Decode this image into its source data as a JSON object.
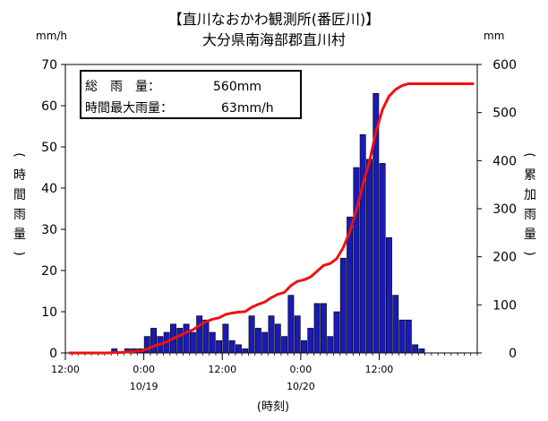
{
  "chart_data": {
    "type": "bar",
    "title": "【直川なおかわ観測所(番匠川)】",
    "subtitle": "大分県南海部郡直川村",
    "left_unit": "mm/h",
    "right_unit": "mm",
    "ylabel_left": "(時間雨量)",
    "ylabel_right": "(累加雨量)",
    "xlabel": "(時刻)",
    "ylim_left": [
      0,
      70
    ],
    "ylim_right": [
      0,
      600
    ],
    "yticks_left": [
      "0",
      "10",
      "20",
      "30",
      "40",
      "50",
      "60",
      "70"
    ],
    "yticks_right": [
      "0",
      "100",
      "200",
      "300",
      "400",
      "500",
      "600"
    ],
    "x_ticks": [
      {
        "hour": 0,
        "time": "12:00",
        "date": ""
      },
      {
        "hour": 12,
        "time": "0:00",
        "date": "10/19"
      },
      {
        "hour": 24,
        "time": "12:00",
        "date": ""
      },
      {
        "hour": 36,
        "time": "0:00",
        "date": "10/20"
      },
      {
        "hour": 48,
        "time": "12:00",
        "date": ""
      }
    ],
    "x_range_hours": [
      0,
      63
    ],
    "legend_box": {
      "total_label": "総　雨　量：",
      "total_value": "560mm",
      "max_label": "時間最大雨量：",
      "max_value": "63mm/h"
    },
    "series": [
      {
        "kind": "bar",
        "color": "#1a1ab4",
        "values": [
          0,
          0,
          0,
          0,
          0,
          0,
          0,
          1,
          0,
          1,
          1,
          1,
          4,
          6,
          4,
          5,
          7,
          6,
          7,
          5,
          9,
          8,
          5,
          3,
          7,
          3,
          2,
          1,
          9,
          6,
          5,
          9,
          7,
          4,
          14,
          9,
          3,
          6,
          12,
          12,
          4,
          10,
          23,
          33,
          45,
          53,
          47,
          63,
          46,
          28,
          14,
          8,
          8,
          2,
          1,
          0,
          0,
          0,
          0,
          0,
          0,
          0,
          0
        ]
      },
      {
        "kind": "line",
        "axis": "right",
        "color": "#ee1111",
        "values": [
          0,
          0,
          0,
          0,
          0,
          0,
          0,
          1,
          1,
          2,
          3,
          4,
          8,
          14,
          18,
          23,
          30,
          36,
          43,
          48,
          57,
          65,
          70,
          73,
          80,
          83,
          85,
          86,
          95,
          101,
          106,
          115,
          122,
          126,
          140,
          149,
          152,
          158,
          170,
          182,
          186,
          196,
          219,
          252,
          297,
          350,
          397,
          460,
          506,
          534,
          548,
          556,
          560,
          560,
          560,
          560,
          560,
          560,
          560,
          560,
          560,
          560,
          560
        ]
      }
    ]
  }
}
